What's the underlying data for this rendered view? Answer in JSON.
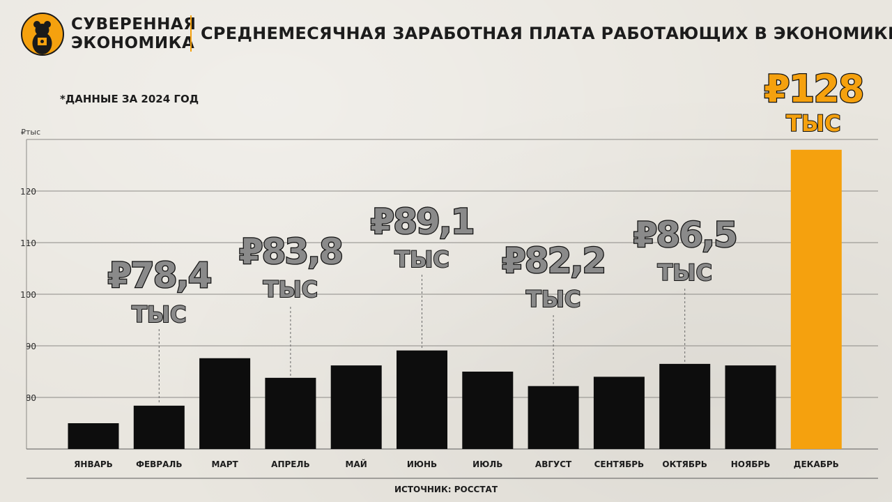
{
  "brand": {
    "line1": "СУВЕРЕННАЯ",
    "line2": "ЭКОНОМИКА"
  },
  "title": "СРЕДНЕМЕСЯЧНАЯ ЗАРАБОТНАЯ ПЛАТА РАБОТАЮЩИХ В ЭКОНОМИКЕ*",
  "note": "*ДАННЫЕ ЗА 2024 ГОД",
  "source": "ИСТОЧНИК: РОССТАТ",
  "colors": {
    "accent": "#f5a10e",
    "bar": "#0d0d0d",
    "grid": "#8c8a86",
    "callout": "#8a8a8a"
  },
  "chart_data": {
    "type": "bar",
    "ylabel": "₽тыс",
    "categories": [
      "ЯНВАРЬ",
      "ФЕВРАЛЬ",
      "МАРТ",
      "АПРЕЛЬ",
      "МАЙ",
      "ИЮНЬ",
      "ИЮЛЬ",
      "АВГУСТ",
      "СЕНТЯБРЬ",
      "ОКТЯБРЬ",
      "НОЯБРЬ",
      "ДЕКАБРЬ"
    ],
    "values": [
      75.0,
      78.4,
      87.6,
      83.8,
      86.2,
      89.1,
      85.0,
      82.2,
      84.0,
      86.5,
      86.2,
      128.0
    ],
    "highlight": [
      false,
      false,
      false,
      false,
      false,
      false,
      false,
      false,
      false,
      false,
      false,
      true
    ],
    "yticks": [
      80,
      90,
      100,
      110,
      120
    ],
    "ylim": [
      70,
      130
    ],
    "grid": true,
    "callouts": [
      {
        "category": "ФЕВРАЛЬ",
        "value": "₽78,4",
        "unit": "ТЫС"
      },
      {
        "category": "АПРЕЛЬ",
        "value": "₽83,8",
        "unit": "ТЫС"
      },
      {
        "category": "ИЮНЬ",
        "value": "₽89,1",
        "unit": "ТЫС"
      },
      {
        "category": "АВГУСТ",
        "value": "₽82,2",
        "unit": "ТЫС"
      },
      {
        "category": "ОКТЯБРЬ",
        "value": "₽86,5",
        "unit": "ТЫС"
      },
      {
        "category": "ДЕКАБРЬ",
        "value": "₽128",
        "unit": "ТЫС"
      }
    ]
  }
}
